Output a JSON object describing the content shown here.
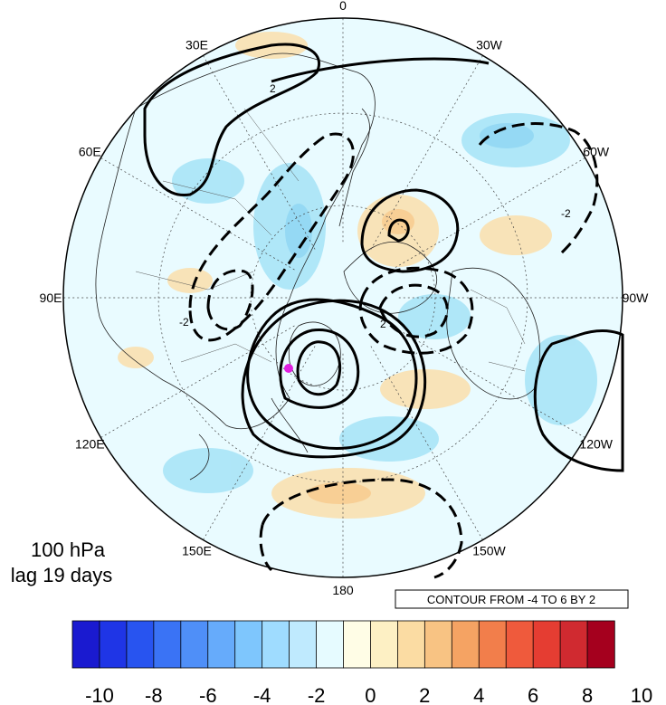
{
  "longitude_labels": [
    "0",
    "30W",
    "60W",
    "90W",
    "120W",
    "150W",
    "180",
    "150E",
    "120E",
    "90E",
    "60E",
    "30E"
  ],
  "title": {
    "line1": "100 hPa",
    "line2": "lag 19 days"
  },
  "contour_info": "CONTOUR FROM -4 TO 6 BY 2",
  "contour_labels": {
    "positive": "2",
    "negative": "-2"
  },
  "colorbar": {
    "colors": [
      "#1a1ad0",
      "#1f35e6",
      "#2854f0",
      "#3a73f5",
      "#4f8ff8",
      "#66abfb",
      "#7ec6fd",
      "#9fdcff",
      "#bfeafe",
      "#e6fbff",
      "#fffde6",
      "#fdf0c4",
      "#fbdca3",
      "#f8c383",
      "#f5a363",
      "#f27e4b",
      "#ef5a3c",
      "#e53d32",
      "#d02a30",
      "#a5001e"
    ],
    "tick_labels": [
      "-10",
      "-8",
      "-6",
      "-4",
      "-2",
      "0",
      "2",
      "4",
      "6",
      "8",
      "10"
    ]
  },
  "colors": {
    "ocean_fill": "#e9fbff",
    "positive_anomaly": "#fae0b0",
    "negative_anomaly": "#a9e4f7",
    "marker": "#e020e0"
  }
}
